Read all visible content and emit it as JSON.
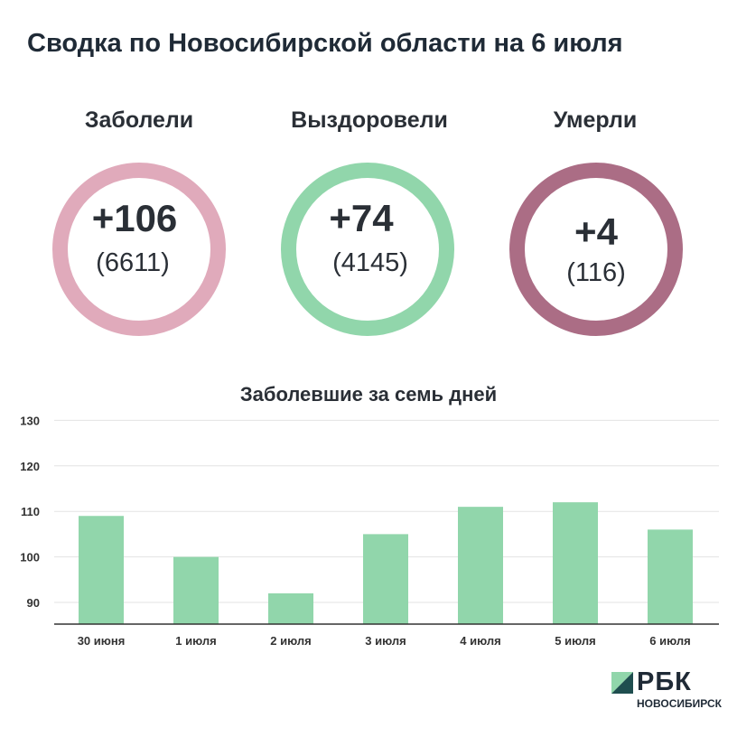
{
  "title": "Сводка по Новосибирской области на 6 июля",
  "stats": [
    {
      "label": "Заболели",
      "value": "+106",
      "total": "(6611)",
      "color": "#e0aabb"
    },
    {
      "label": "Выздоровели",
      "value": "+74",
      "total": "(4145)",
      "color": "#91d6ab"
    },
    {
      "label": "Умерли",
      "value": "+4",
      "total": "(116)",
      "color": "#ab6d85"
    }
  ],
  "chart_data": {
    "type": "bar",
    "title": "Заболевшие за семь дней",
    "categories": [
      "30 июня",
      "1 июля",
      "2 июля",
      "3 июля",
      "4 июля",
      "5 июля",
      "6 июля"
    ],
    "values": [
      109,
      100,
      92,
      105,
      111,
      112,
      106
    ],
    "yticks": [
      90,
      100,
      110,
      120,
      130
    ],
    "ylim": [
      85,
      130
    ],
    "grid": true,
    "bar_color": "#91d6ab"
  },
  "logo": {
    "name": "РБК",
    "sub": "НОВОСИБИРСК",
    "color_dark": "#1f4e4f",
    "color_light": "#91d6ab"
  }
}
